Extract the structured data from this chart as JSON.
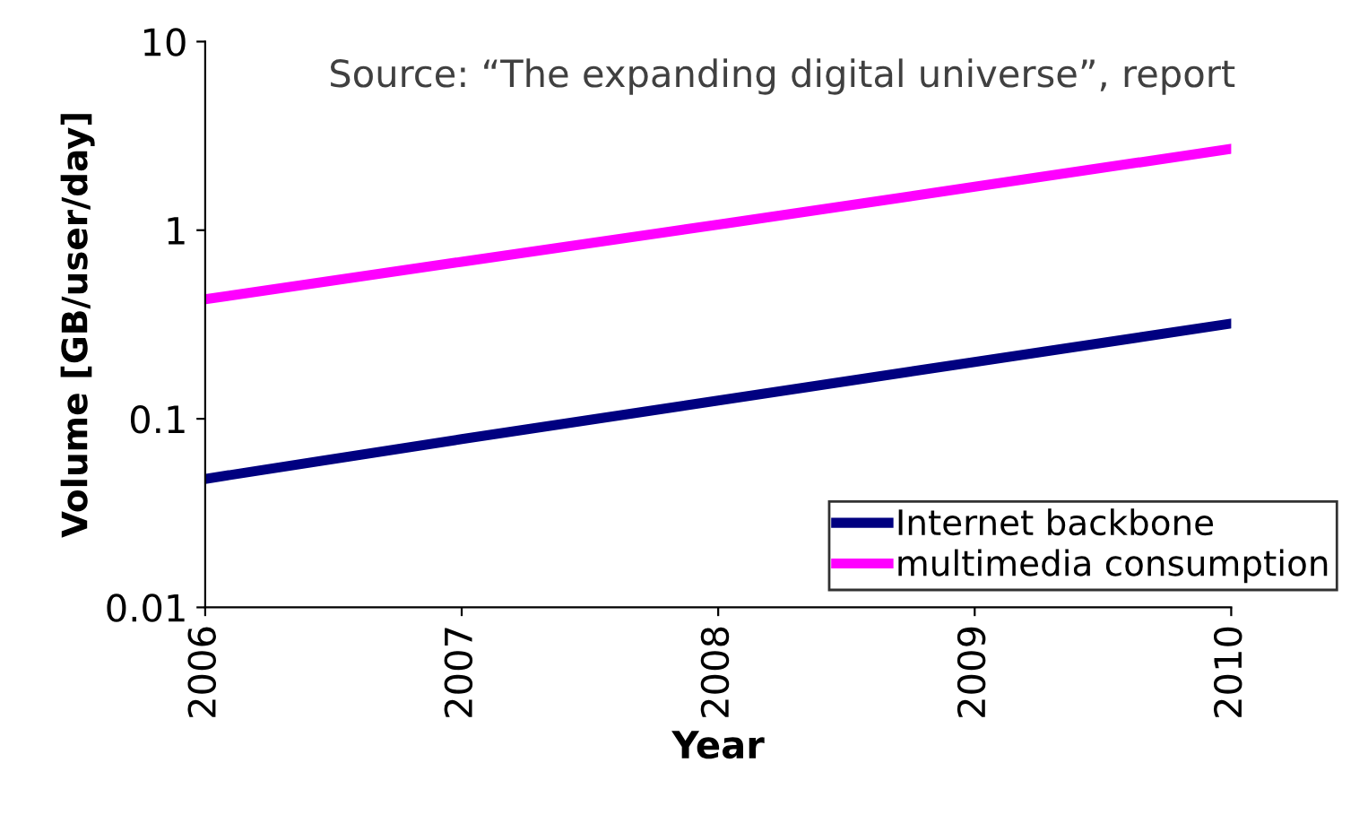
{
  "chart_data": {
    "type": "line",
    "xlabel": "Year",
    "ylabel": "Volume [GB/user/day]",
    "annotations": [
      "Source: “The expanding digital universe”, report"
    ],
    "x": [
      2006,
      2007,
      2008,
      2009,
      2010
    ],
    "series": [
      {
        "name": "Internet backbone",
        "color": "#000080",
        "values": [
          0.048,
          0.078,
          0.125,
          0.2,
          0.32
        ]
      },
      {
        "name": "multimedia consumption",
        "color": "#ff00ff",
        "values": [
          0.43,
          0.68,
          1.07,
          1.7,
          2.7
        ]
      }
    ],
    "log": "y",
    "xlim": [
      2006,
      2010
    ],
    "ylim": [
      0.01,
      10
    ],
    "xticks": [
      2006,
      2007,
      2008,
      2009,
      2010
    ],
    "yticks": [
      0.01,
      0.1,
      1,
      10
    ],
    "grid": false,
    "legend": "bottom right",
    "marker": "none",
    "line_style": "solid"
  }
}
